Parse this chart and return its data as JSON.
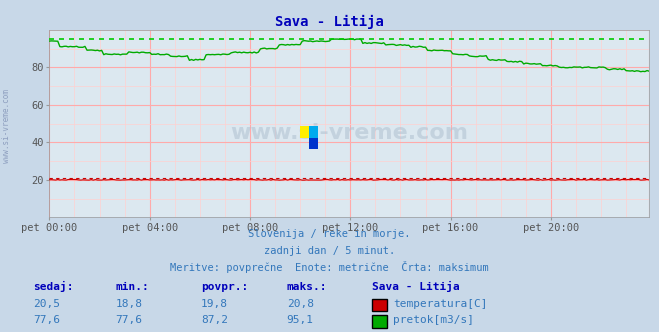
{
  "title": "Sava - Litija",
  "bg_color": "#c8d8e8",
  "plot_bg_color": "#dce8f0",
  "grid_color_major": "#ffaaaa",
  "grid_color_minor": "#ffd0d0",
  "xlabel_ticks": [
    "pet 00:00",
    "pet 04:00",
    "pet 08:00",
    "pet 12:00",
    "pet 16:00",
    "pet 20:00"
  ],
  "ylim": [
    0,
    100
  ],
  "yticks": [
    20,
    40,
    60,
    80
  ],
  "subtitle1": "Slovenija / reke in morje.",
  "subtitle2": "zadnji dan / 5 minut.",
  "subtitle3": "Meritve: povprečne  Enote: metrične  Črta: maksimum",
  "table_headers": [
    "sedaj:",
    "min.:",
    "povpr.:",
    "maks.:"
  ],
  "temp_row": [
    "20,5",
    "18,8",
    "19,8",
    "20,8"
  ],
  "flow_row": [
    "77,6",
    "77,6",
    "87,2",
    "95,1"
  ],
  "station_label": "Sava - Litija",
  "temp_label": "temperatura[C]",
  "flow_label": "pretok[m3/s]",
  "temp_color": "#cc0000",
  "flow_color": "#00aa00",
  "flow_max_dotted_color": "#00cc00",
  "temp_line_color": "#cc0000",
  "temp_max_dotted_color": "#cc0000",
  "watermark_text": "www.si-vreme.com",
  "n_points": 288,
  "flow_max": 95.1,
  "flow_min": 77.6,
  "temp_val": 20.0,
  "temp_max": 20.8
}
